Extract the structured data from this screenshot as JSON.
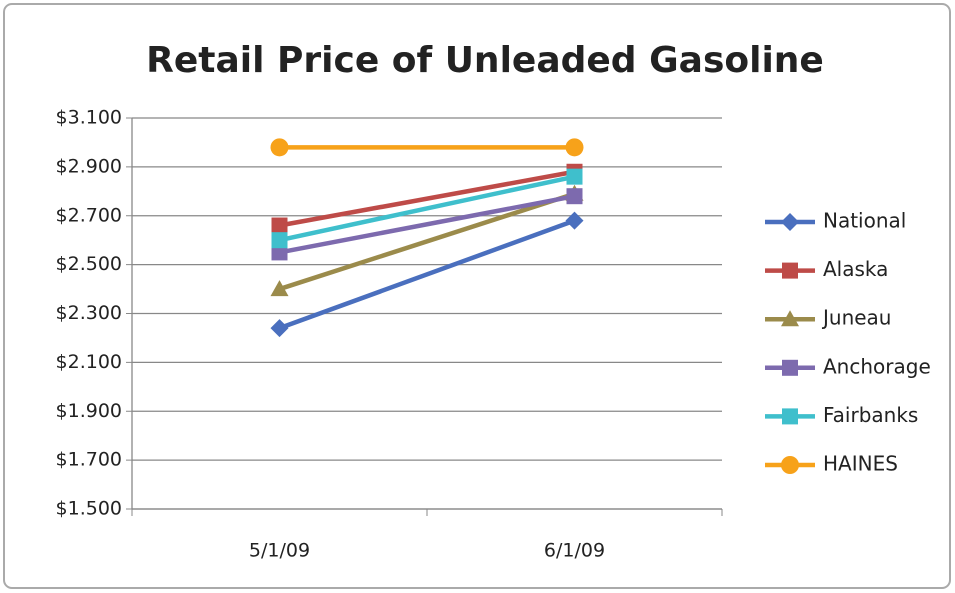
{
  "chart_data": {
    "type": "line",
    "title": "Retail Price of Unleaded Gasoline",
    "categories": [
      "5/1/09",
      "6/1/09"
    ],
    "series": [
      {
        "name": "National",
        "color": "#4a6fbe",
        "marker": "diamond",
        "values": [
          2.24,
          2.68
        ]
      },
      {
        "name": "Alaska",
        "color": "#be4b48",
        "marker": "square",
        "values": [
          2.66,
          2.88
        ]
      },
      {
        "name": "Juneau",
        "color": "#9b8b4b",
        "marker": "triangle",
        "values": [
          2.4,
          2.79
        ]
      },
      {
        "name": "Anchorage",
        "color": "#7d6aae",
        "marker": "square",
        "values": [
          2.55,
          2.78
        ]
      },
      {
        "name": "Fairbanks",
        "color": "#3fbfcc",
        "marker": "square",
        "values": [
          2.6,
          2.86
        ]
      },
      {
        "name": "HAINES",
        "color": "#f7a21a",
        "marker": "circle",
        "values": [
          2.98,
          2.98
        ]
      }
    ],
    "ylim": [
      1.5,
      3.1
    ],
    "yticks": [
      {
        "value": 1.5,
        "label": "$1.500"
      },
      {
        "value": 1.7,
        "label": "$1.700"
      },
      {
        "value": 1.9,
        "label": "$1.900"
      },
      {
        "value": 2.1,
        "label": "$2.100"
      },
      {
        "value": 2.3,
        "label": "$2.300"
      },
      {
        "value": 2.5,
        "label": "$2.500"
      },
      {
        "value": 2.7,
        "label": "$2.700"
      },
      {
        "value": 2.9,
        "label": "$2.900"
      },
      {
        "value": 3.1,
        "label": "$3.100"
      }
    ],
    "grid": true,
    "legend": "right"
  }
}
